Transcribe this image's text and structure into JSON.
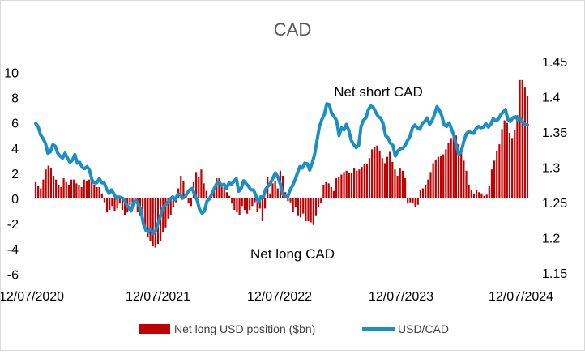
{
  "chart_data": {
    "type": "bar+line",
    "title": "CAD",
    "xlabel": "",
    "ylabel_left": "",
    "ylabel_right": "",
    "x_tick_labels": [
      "12/07/2020",
      "12/07/2021",
      "12/07/2022",
      "12/07/2023",
      "12/07/2024"
    ],
    "y_left": {
      "ticks": [
        "10",
        "8",
        "6",
        "4",
        "2",
        "0",
        "-2",
        "-4",
        "-6"
      ],
      "ylim": [
        -6,
        10
      ]
    },
    "y_right": {
      "ticks": [
        "1.45",
        "1.4",
        "1.35",
        "1.3",
        "1.25",
        "1.2",
        "1.15"
      ],
      "ylim": [
        1.15,
        1.45
      ]
    },
    "annotations": [
      "Net short CAD",
      "Net long CAD"
    ],
    "grid": false,
    "legend_position": "bottom",
    "series": [
      {
        "name": "Net long USD position ($bn)",
        "type": "bar",
        "axis": "left",
        "color": "#C00000",
        "values": [
          1.3,
          1.0,
          0.8,
          1.5,
          2.3,
          2.6,
          2.4,
          1.8,
          1.5,
          1.1,
          0.9,
          1.6,
          1.3,
          1.1,
          1.5,
          1.5,
          1.2,
          1.1,
          0.9,
          1.5,
          1.4,
          1.5,
          1.4,
          1.1,
          0.9,
          0.9,
          0.4,
          -0.3,
          -1.1,
          -0.9,
          -0.6,
          -1.0,
          -0.8,
          -0.4,
          -0.9,
          -1.3,
          -1.1,
          -0.5,
          -0.3,
          -0.4,
          -1.1,
          -1.4,
          -2.0,
          -2.6,
          -3.1,
          -3.4,
          -3.8,
          -3.9,
          -3.6,
          -3.4,
          -2.7,
          -2.3,
          -1.6,
          -1.3,
          -0.7,
          -0.3,
          0.8,
          1.8,
          1.4,
          0.3,
          -0.4,
          -0.6,
          1.3,
          2.1,
          1.7,
          2.3,
          1.2,
          0.6,
          -0.1,
          0.2,
          0.7,
          1.6,
          1.6,
          1.2,
          0.9,
          0.5,
          0.2,
          -0.4,
          -0.9,
          -1.1,
          -1.3,
          -0.6,
          -0.9,
          -1.2,
          -0.9,
          -0.6,
          -0.3,
          -1.1,
          -0.8,
          -1.8,
          -0.8,
          1.7,
          0.4,
          1.2,
          1.4,
          0.8,
          2.2,
          1.8,
          0.5,
          -0.2,
          -0.3,
          -1.1,
          -0.7,
          -1.4,
          -1.5,
          -1.2,
          -1.8,
          -1.8,
          -1.9,
          -2.1,
          -1.4,
          -0.7,
          -0.4,
          1.1,
          1.3,
          1.2,
          0.9,
          0.6,
          1.6,
          1.7,
          1.9,
          2.1,
          2.2,
          2.0,
          2.0,
          2.4,
          2.2,
          2.3,
          2.5,
          2.7,
          2.7,
          3.2,
          3.9,
          4.1,
          4.2,
          3.8,
          3.2,
          2.8,
          3.3,
          3.7,
          2.9,
          2.3,
          1.8,
          2.4,
          2.2,
          1.6,
          -0.4,
          -0.3,
          -0.4,
          -0.7,
          -0.5,
          0.7,
          0.8,
          1.1,
          1.5,
          2.1,
          2.8,
          3.1,
          3.3,
          3.4,
          3.5,
          3.9,
          4.4,
          4.8,
          5.2,
          5.0,
          4.3,
          4.0,
          3.0,
          2.2,
          1.1,
          0.7,
          0.4,
          0.7,
          0.5,
          0.4,
          0.2,
          0.3,
          1.0,
          2.3,
          3.0,
          3.8,
          4.3,
          5.5,
          6.2,
          6.0,
          5.2,
          4.8,
          5.4,
          6.6,
          9.4,
          9.4,
          8.8,
          8.1
        ]
      },
      {
        "name": "USD/CAD",
        "type": "line",
        "axis": "right",
        "color": "#1B8EC4",
        "values": [
          1.362,
          1.358,
          1.346,
          1.341,
          1.334,
          1.32,
          1.322,
          1.332,
          1.33,
          1.32,
          1.316,
          1.313,
          1.32,
          1.313,
          1.307,
          1.31,
          1.318,
          1.306,
          1.307,
          1.3,
          1.298,
          1.301,
          1.296,
          1.282,
          1.278,
          1.278,
          1.284,
          1.278,
          1.278,
          1.269,
          1.263,
          1.268,
          1.262,
          1.256,
          1.258,
          1.257,
          1.255,
          1.248,
          1.243,
          1.238,
          1.25,
          1.253,
          1.247,
          1.24,
          1.22,
          1.211,
          1.208,
          1.212,
          1.206,
          1.21,
          1.22,
          1.231,
          1.242,
          1.247,
          1.25,
          1.255,
          1.258,
          1.254,
          1.261,
          1.262,
          1.256,
          1.258,
          1.264,
          1.268,
          1.27,
          1.261,
          1.253,
          1.24,
          1.235,
          1.238,
          1.252,
          1.255,
          1.262,
          1.27,
          1.277,
          1.279,
          1.274,
          1.276,
          1.27,
          1.278,
          1.276,
          1.28,
          1.284,
          1.266,
          1.27,
          1.281,
          1.277,
          1.273,
          1.268,
          1.268,
          1.26,
          1.25,
          1.258,
          1.257,
          1.269,
          1.273,
          1.278,
          1.285,
          1.292,
          1.286,
          1.276,
          1.262,
          1.259,
          1.258,
          1.268,
          1.274,
          1.282,
          1.292,
          1.301,
          1.299,
          1.306,
          1.305,
          1.296,
          1.306,
          1.318,
          1.338,
          1.358,
          1.368,
          1.375,
          1.39,
          1.389,
          1.376,
          1.372,
          1.366,
          1.345,
          1.356,
          1.353,
          1.361,
          1.352,
          1.338,
          1.332,
          1.328,
          1.331,
          1.358,
          1.367,
          1.37,
          1.382,
          1.387,
          1.385,
          1.378,
          1.372,
          1.37,
          1.362,
          1.345,
          1.342,
          1.334,
          1.331,
          1.316,
          1.323,
          1.326,
          1.327,
          1.331,
          1.338,
          1.344,
          1.356,
          1.36,
          1.356,
          1.354,
          1.362,
          1.365,
          1.37,
          1.361,
          1.366,
          1.375,
          1.386,
          1.381,
          1.373,
          1.36,
          1.358,
          1.363,
          1.354,
          1.344,
          1.33,
          1.318,
          1.323,
          1.337,
          1.347,
          1.351,
          1.349,
          1.348,
          1.355,
          1.358,
          1.356,
          1.357,
          1.362,
          1.357,
          1.361,
          1.369,
          1.366,
          1.368,
          1.374,
          1.378,
          1.382,
          1.368,
          1.365,
          1.37,
          1.372,
          1.368,
          1.37,
          1.364,
          1.361,
          1.36
        ]
      }
    ]
  }
}
